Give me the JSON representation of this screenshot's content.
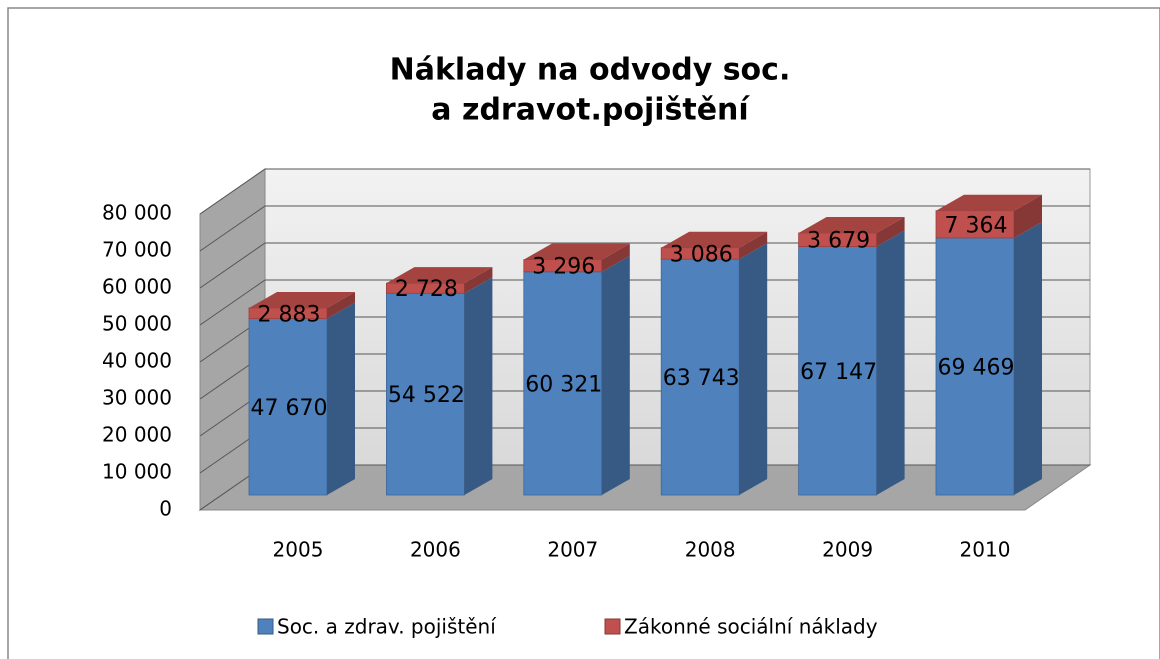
{
  "chart_data": {
    "type": "bar",
    "stacked": true,
    "title": [
      "Náklady na odvody soc.",
      "a zdravot.pojištění"
    ],
    "categories": [
      "2005",
      "2006",
      "2007",
      "2008",
      "2009",
      "2010"
    ],
    "series": [
      {
        "name": "Soc. a zdrav. pojištění",
        "color": "#4f81bd",
        "values": [
          47670,
          54522,
          60321,
          63743,
          67147,
          69469
        ],
        "value_labels": [
          "47 670",
          "54 522",
          "60 321",
          "63 743",
          "67 147",
          "69 469"
        ]
      },
      {
        "name": "Zákonné sociální náklady",
        "color": "#c0504d",
        "values": [
          2883,
          2728,
          3296,
          3086,
          3679,
          7364
        ],
        "value_labels": [
          "2 883",
          "2 728",
          "3 296",
          "3 086",
          "3 679",
          "7 364"
        ]
      }
    ],
    "ylim": [
      0,
      80000
    ],
    "yticks": [
      0,
      {
        "value": 10000,
        "label": "10 000"
      },
      {
        "value": 20000,
        "label": "20 000"
      },
      {
        "value": 30000,
        "label": "30 000"
      },
      {
        "value": 40000,
        "label": "40 000"
      },
      {
        "value": 50000,
        "label": "50 000"
      },
      {
        "value": 60000,
        "label": "60 000"
      },
      {
        "value": 70000,
        "label": "70 000"
      },
      {
        "value": 80000,
        "label": "80 000"
      }
    ],
    "grid": true,
    "legend": "bottom"
  }
}
